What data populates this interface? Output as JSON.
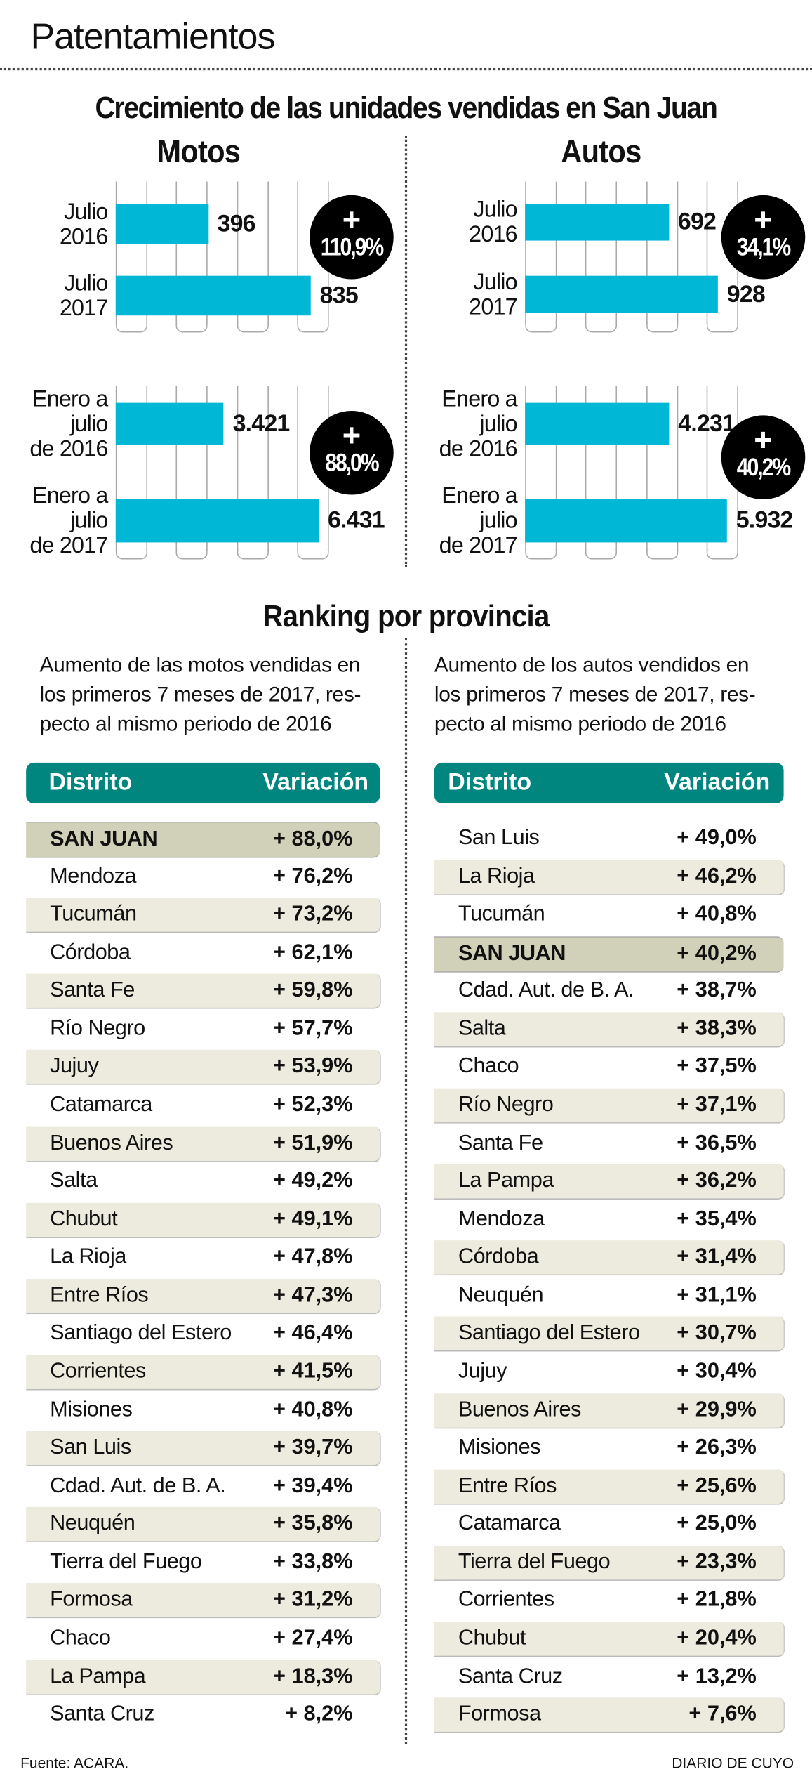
{
  "title": "Patentamientos",
  "headline": "Crecimiento de las unidades vendidas en San Juan",
  "colors": {
    "bar": "#00b8d6",
    "table_header": "#00857f",
    "row_alt": "#ecebdd",
    "row_highlight": "#d1d1b9"
  },
  "chart_data": [
    {
      "type": "bar",
      "title": "Motos",
      "categories": [
        "Julio 2016",
        "Julio 2017"
      ],
      "values": [
        396,
        835
      ],
      "value_labels": [
        "396",
        "835"
      ],
      "badge": {
        "sign": "+",
        "value": "110,9%"
      }
    },
    {
      "type": "bar",
      "title": "Motos",
      "categories": [
        "Enero a julio de 2016",
        "Enero a julio de 2017"
      ],
      "values": [
        3421,
        6431
      ],
      "value_labels": [
        "3.421",
        "6.431"
      ],
      "badge": {
        "sign": "+",
        "value": "88,0%"
      }
    },
    {
      "type": "bar",
      "title": "Autos",
      "categories": [
        "Julio 2016",
        "Julio 2017"
      ],
      "values": [
        692,
        928
      ],
      "value_labels": [
        "692",
        "928"
      ],
      "badge": {
        "sign": "+",
        "value": "34,1%"
      }
    },
    {
      "type": "bar",
      "title": "Autos",
      "categories": [
        "Enero a julio de 2016",
        "Enero a julio de 2017"
      ],
      "values": [
        4231,
        5932
      ],
      "value_labels": [
        "4.231",
        "5.932"
      ],
      "badge": {
        "sign": "+",
        "value": "40,2%"
      }
    }
  ],
  "sections": {
    "motos": "Motos",
    "autos": "Autos"
  },
  "bar_labels": {
    "julio_2016": [
      "Julio",
      "2016"
    ],
    "julio_2017": [
      "Julio",
      "2017"
    ],
    "enero_2016": [
      "Enero a",
      "julio",
      "de 2016"
    ],
    "enero_2017": [
      "Enero a",
      "julio",
      "de 2017"
    ]
  },
  "ranking": {
    "title": "Ranking por provincia",
    "motos": {
      "description": "Aumento de las motos vendidas en los primeros 7 meses de 2017, respecto al mismo periodo de 2016",
      "description_lines": [
        "Aumento de las motos vendidas en",
        "los primeros 7 meses de 2017, res-",
        "pecto al mismo periodo de 2016"
      ],
      "headers": [
        "Distrito",
        "Variación"
      ],
      "rows": [
        [
          "SAN JUAN",
          "+ 88,0%"
        ],
        [
          "Mendoza",
          "+ 76,2%"
        ],
        [
          "Tucumán",
          "+ 73,2%"
        ],
        [
          "Córdoba",
          "+ 62,1%"
        ],
        [
          "Santa Fe",
          "+ 59,8%"
        ],
        [
          "Río Negro",
          "+ 57,7%"
        ],
        [
          "Jujuy",
          "+ 53,9%"
        ],
        [
          "Catamarca",
          "+ 52,3%"
        ],
        [
          "Buenos Aires",
          "+ 51,9%"
        ],
        [
          "Salta",
          "+ 49,2%"
        ],
        [
          "Chubut",
          "+ 49,1%"
        ],
        [
          "La Rioja",
          "+ 47,8%"
        ],
        [
          "Entre Ríos",
          "+ 47,3%"
        ],
        [
          "Santiago del Estero",
          "+ 46,4%"
        ],
        [
          "Corrientes",
          "+ 41,5%"
        ],
        [
          "Misiones",
          "+ 40,8%"
        ],
        [
          "San Luis",
          "+ 39,7%"
        ],
        [
          "Cdad. Aut. de B. A.",
          "+ 39,4%"
        ],
        [
          "Neuquén",
          "+ 35,8%"
        ],
        [
          "Tierra del Fuego",
          "+ 33,8%"
        ],
        [
          "Formosa",
          "+ 31,2%"
        ],
        [
          "Chaco",
          "+ 27,4%"
        ],
        [
          "La Pampa",
          "+ 18,3%"
        ],
        [
          "Santa Cruz",
          "+ 8,2%"
        ]
      ]
    },
    "autos": {
      "description": "Aumento de los autos vendidos en los primeros 7 meses de 2017, respecto al mismo periodo de 2016",
      "description_lines": [
        "Aumento de los autos vendidos en",
        "los primeros 7 meses de 2017, res-",
        "pecto al mismo periodo de 2016"
      ],
      "headers": [
        "Distrito",
        "Variación"
      ],
      "rows": [
        [
          "San Luis",
          "+ 49,0%"
        ],
        [
          "La Rioja",
          "+ 46,2%"
        ],
        [
          "Tucumán",
          "+ 40,8%"
        ],
        [
          "SAN JUAN",
          "+ 40,2%"
        ],
        [
          "Cdad. Aut. de B. A.",
          "+ 38,7%"
        ],
        [
          "Salta",
          "+ 38,3%"
        ],
        [
          "Chaco",
          "+ 37,5%"
        ],
        [
          "Río Negro",
          "+ 37,1%"
        ],
        [
          "Santa Fe",
          "+ 36,5%"
        ],
        [
          "La Pampa",
          "+ 36,2%"
        ],
        [
          "Mendoza",
          "+ 35,4%"
        ],
        [
          "Córdoba",
          "+ 31,4%"
        ],
        [
          "Neuquén",
          "+ 31,1%"
        ],
        [
          "Santiago del Estero",
          "+ 30,7%"
        ],
        [
          "Jujuy",
          "+ 30,4%"
        ],
        [
          "Buenos Aires",
          "+ 29,9%"
        ],
        [
          "Misiones",
          "+ 26,3%"
        ],
        [
          "Entre Ríos",
          "+ 25,6%"
        ],
        [
          "Catamarca",
          "+ 25,0%"
        ],
        [
          "Tierra del Fuego",
          "+ 23,3%"
        ],
        [
          "Corrientes",
          "+ 21,8%"
        ],
        [
          "Chubut",
          "+ 20,4%"
        ],
        [
          "Santa Cruz",
          "+ 13,2%"
        ],
        [
          "Formosa",
          "+ 7,6%"
        ]
      ]
    }
  },
  "footer": {
    "source": "Fuente: ACARA.",
    "publisher": "DIARIO DE CUYO"
  }
}
